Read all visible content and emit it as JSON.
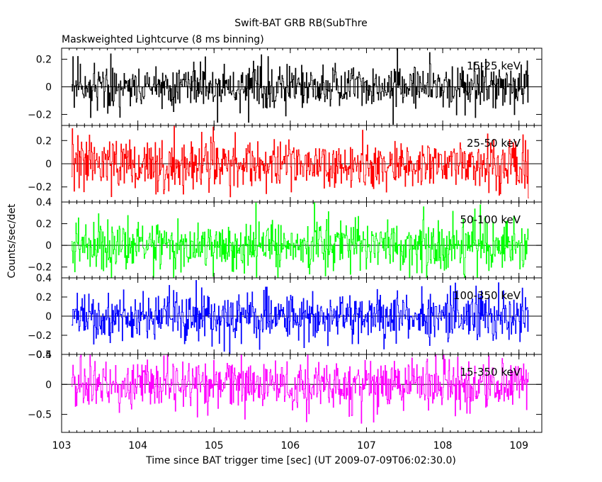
{
  "title": "Swift-BAT GRB RB(SubThre",
  "subtitle": "Maskweighted Lightcurve (8 ms binning)",
  "xlabel": "Time since BAT trigger time [sec] (UT 2009-07-09T06:02:30.0)",
  "ylabel": "Counts/sec/det",
  "chart_data": {
    "type": "line",
    "title": "Swift-BAT GRB RB(SubThre",
    "subtitle": "Maskweighted Lightcurve (8 ms binning)",
    "xlabel": "Time since BAT trigger time [sec] (UT 2009-07-09T06:02:30.0)",
    "ylabel": "Counts/sec/det",
    "xlim": [
      103,
      109.3
    ],
    "x_ticks": [
      103,
      104,
      105,
      106,
      107,
      108,
      109
    ],
    "x_tick_labels": [
      "103",
      "104",
      "105",
      "106",
      "107",
      "108",
      "109"
    ],
    "x_start": 103.13,
    "x_end": 109.13,
    "bin_width": 0.008,
    "grid": false,
    "panels": [
      {
        "name": "15-25 keV",
        "color": "#000000",
        "ylim": [
          -0.28,
          0.28
        ],
        "y_ticks": [
          -0.2,
          0,
          0.2
        ],
        "y_tick_labels": [
          "−0.2",
          "0",
          "0.2"
        ],
        "noise_sigma": 0.09
      },
      {
        "name": "25-50 keV",
        "color": "#ff0000",
        "ylim": [
          -0.33,
          0.33
        ],
        "y_ticks": [
          -0.2,
          0,
          0.2
        ],
        "y_tick_labels": [
          "−0.2",
          "0",
          "0.2"
        ],
        "noise_sigma": 0.11
      },
      {
        "name": "50-100 keV",
        "color": "#00ff00",
        "ylim": [
          -0.3,
          0.4
        ],
        "y_ticks": [
          -0.2,
          0,
          0.2,
          0.4
        ],
        "y_tick_labels": [
          "−0.2",
          "0",
          "0.2",
          "0.4"
        ],
        "noise_sigma": 0.12
      },
      {
        "name": "100-350 keV",
        "color": "#0000ff",
        "ylim": [
          -0.4,
          0.4
        ],
        "y_ticks": [
          -0.4,
          -0.2,
          0,
          0.2,
          0.4
        ],
        "y_tick_labels": [
          "−0.4",
          "−0.2",
          "0",
          "0.2",
          "0.4"
        ],
        "noise_sigma": 0.13
      },
      {
        "name": "15-350 keV",
        "color": "#ff00ff",
        "ylim": [
          -0.8,
          0.5
        ],
        "y_ticks": [
          -0.5,
          0,
          0.5
        ],
        "y_tick_labels": [
          "−0.5",
          "0",
          "0.5"
        ],
        "noise_sigma": 0.22
      }
    ]
  }
}
